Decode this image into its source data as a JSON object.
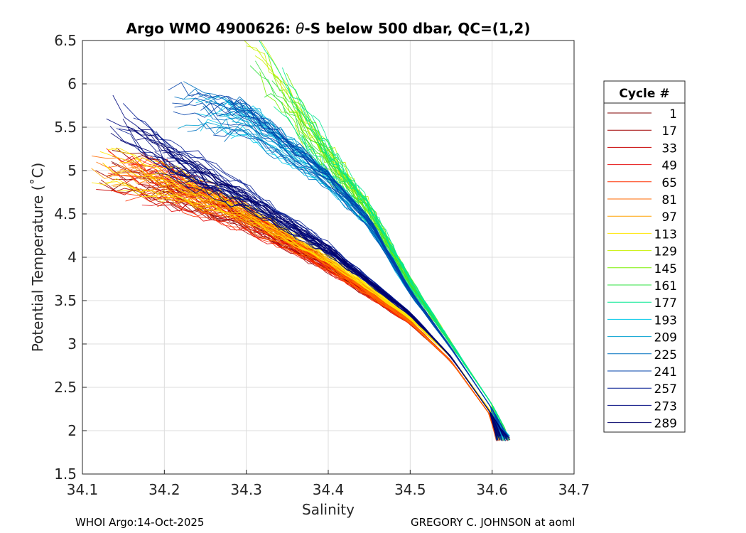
{
  "chart_data": {
    "type": "line",
    "title_prefix": "Argo WMO 4900626: ",
    "title_theta": "θ",
    "title_suffix": "-S below 500 dbar,  QC=(1,2)",
    "xlabel": "Salinity",
    "ylabel": "Potential Temperature (˚C)",
    "xlim": [
      34.1,
      34.7
    ],
    "ylim": [
      1.5,
      6.5
    ],
    "xticks": [
      "34.1",
      "34.2",
      "34.3",
      "34.4",
      "34.5",
      "34.6",
      "34.7"
    ],
    "yticks": [
      "1.5",
      "2",
      "2.5",
      "3",
      "3.5",
      "4",
      "4.5",
      "5",
      "5.5",
      "6",
      "6.5"
    ],
    "grid": true,
    "legend_title": "Cycle #",
    "legend_placement": "right-outside",
    "legend": [
      {
        "label": "1",
        "color": "#800000"
      },
      {
        "label": "17",
        "color": "#a00000"
      },
      {
        "label": "33",
        "color": "#c80000"
      },
      {
        "label": "49",
        "color": "#e61010"
      },
      {
        "label": "65",
        "color": "#ff3000"
      },
      {
        "label": "81",
        "color": "#ff6a00"
      },
      {
        "label": "97",
        "color": "#ffa000"
      },
      {
        "label": "113",
        "color": "#ffe600"
      },
      {
        "label": "129",
        "color": "#c8f000"
      },
      {
        "label": "145",
        "color": "#7cf000"
      },
      {
        "label": "161",
        "color": "#30e040"
      },
      {
        "label": "177",
        "color": "#00e890"
      },
      {
        "label": "193",
        "color": "#00c8e8"
      },
      {
        "label": "209",
        "color": "#00a0d0"
      },
      {
        "label": "225",
        "color": "#0070c0"
      },
      {
        "label": "241",
        "color": "#0040a8"
      },
      {
        "label": "257",
        "color": "#001890"
      },
      {
        "label": "273",
        "color": "#000a80"
      },
      {
        "label": "289",
        "color": "#00006a"
      }
    ],
    "envelope": [
      {
        "cycle_from": 1,
        "points": [
          [
            34.11,
            5.05
          ],
          [
            34.2,
            4.85
          ],
          [
            34.3,
            4.45
          ],
          [
            34.4,
            3.9
          ],
          [
            34.5,
            3.25
          ],
          [
            34.55,
            2.8
          ],
          [
            34.6,
            2.15
          ],
          [
            34.62,
            1.88
          ]
        ]
      },
      {
        "cycle_from": 97,
        "points": [
          [
            34.11,
            5.15
          ],
          [
            34.2,
            4.9
          ],
          [
            34.3,
            4.55
          ],
          [
            34.4,
            4.0
          ],
          [
            34.5,
            3.3
          ],
          [
            34.55,
            2.85
          ],
          [
            34.6,
            2.2
          ],
          [
            34.62,
            1.9
          ]
        ]
      },
      {
        "cycle_from": 129,
        "points": [
          [
            34.3,
            6.45
          ],
          [
            34.35,
            5.8
          ],
          [
            34.4,
            5.1
          ],
          [
            34.45,
            4.5
          ],
          [
            34.5,
            3.7
          ],
          [
            34.55,
            3.0
          ],
          [
            34.6,
            2.3
          ],
          [
            34.62,
            1.95
          ]
        ]
      },
      {
        "cycle_from": 193,
        "points": [
          [
            34.2,
            5.8
          ],
          [
            34.3,
            5.6
          ],
          [
            34.4,
            4.9
          ],
          [
            34.45,
            4.4
          ],
          [
            34.5,
            3.6
          ],
          [
            34.55,
            2.95
          ],
          [
            34.6,
            2.25
          ],
          [
            34.62,
            1.92
          ]
        ]
      },
      {
        "cycle_from": 257,
        "points": [
          [
            34.13,
            5.7
          ],
          [
            34.2,
            5.2
          ],
          [
            34.3,
            4.7
          ],
          [
            34.4,
            4.1
          ],
          [
            34.5,
            3.35
          ],
          [
            34.55,
            2.85
          ],
          [
            34.6,
            2.18
          ],
          [
            34.62,
            1.88
          ]
        ]
      }
    ]
  },
  "footer": {
    "left": "WHOI Argo:14-Oct-2025",
    "right": "GREGORY C. JOHNSON at aoml"
  }
}
